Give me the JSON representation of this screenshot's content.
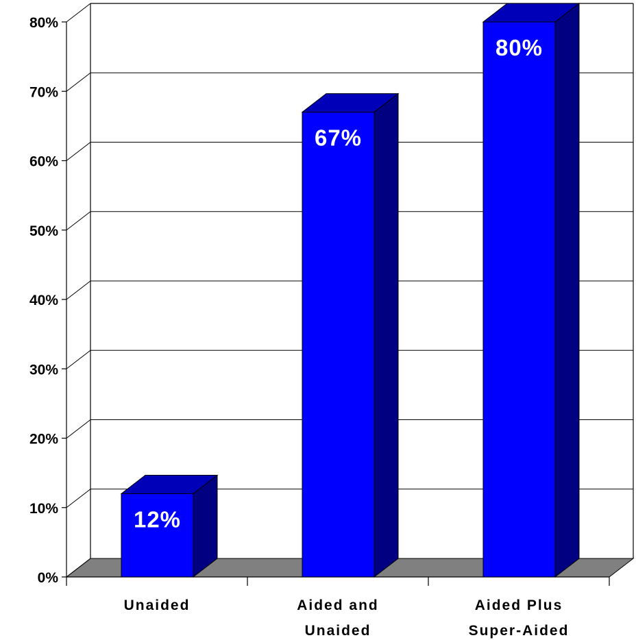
{
  "chart_data": {
    "type": "bar",
    "style": "3d-column",
    "categories": [
      [
        "Unaided"
      ],
      [
        "Aided and",
        "Unaided"
      ],
      [
        "Aided Plus",
        "Super-Aided"
      ]
    ],
    "values": [
      12,
      67,
      80
    ],
    "data_labels": [
      "12%",
      "67%",
      "80%"
    ],
    "y_ticks": [
      "0%",
      "10%",
      "20%",
      "30%",
      "40%",
      "50%",
      "60%",
      "70%",
      "80%"
    ],
    "ylim": [
      0,
      80
    ],
    "grid": true,
    "legend": false,
    "colors": {
      "bar_front": "#0000ff",
      "bar_top": "#0000b8",
      "bar_side": "#000080",
      "floor": "#808080",
      "grid": "#000000",
      "data_label": "#ffffff"
    }
  }
}
